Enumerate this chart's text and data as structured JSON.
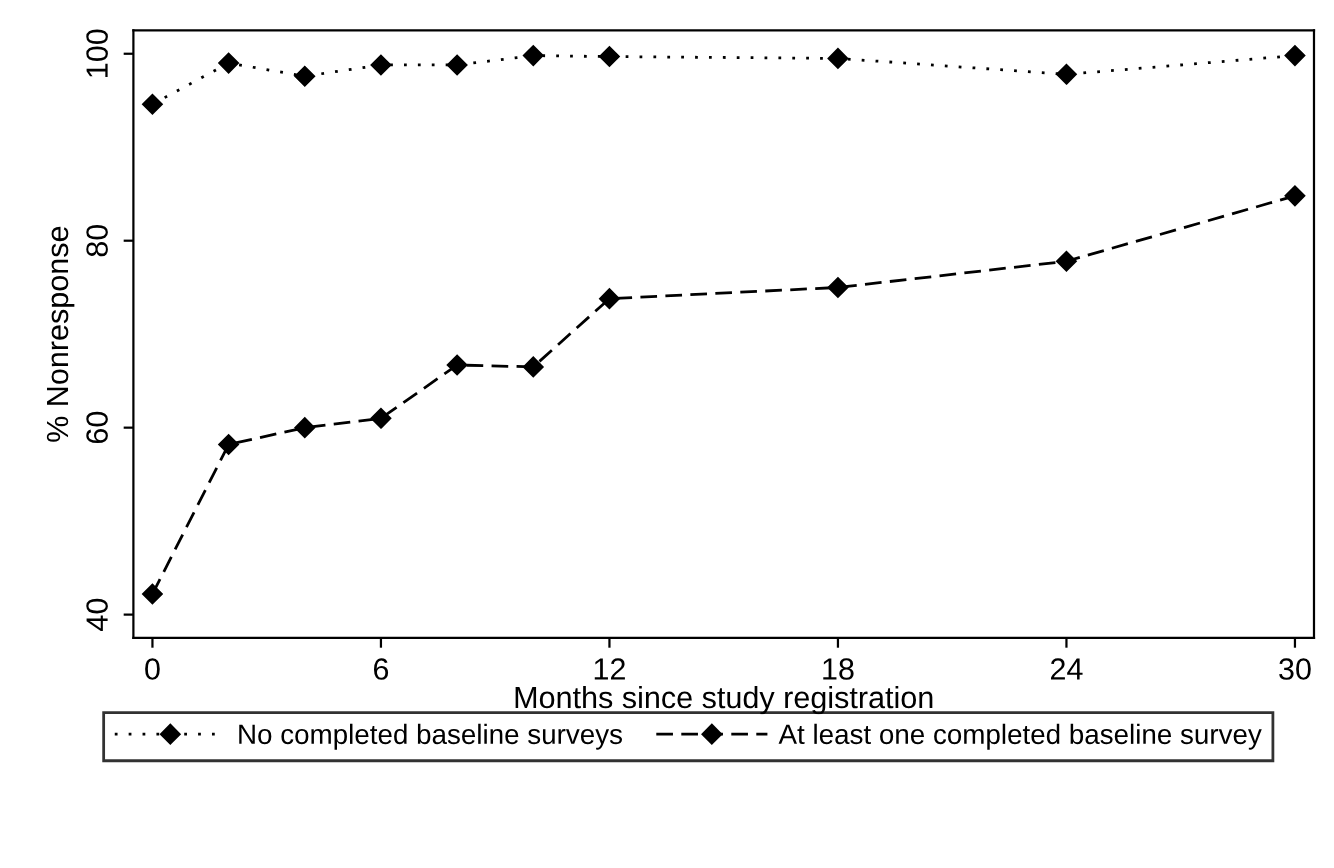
{
  "chart_data": {
    "type": "line",
    "xlabel": "Months since study registration",
    "ylabel": "% Nonresponse",
    "x": [
      0,
      2,
      4,
      6,
      8,
      10,
      12,
      18,
      24,
      30
    ],
    "series": [
      {
        "name": "No completed baseline surveys",
        "color": "#000000",
        "line_style": "dotted",
        "values": [
          94.6,
          99.0,
          97.6,
          98.8,
          98.8,
          99.8,
          99.7,
          99.5,
          97.8,
          99.8
        ]
      },
      {
        "name": "At least one completed baseline survey",
        "color": "#000000",
        "line_style": "dashed",
        "values": [
          42.2,
          58.2,
          60.0,
          61.0,
          66.7,
          66.5,
          73.8,
          75.0,
          77.8,
          84.8
        ]
      }
    ],
    "xlim": [
      -0.5,
      30.5
    ],
    "ylim": [
      37.5,
      102.5
    ],
    "xticks": [
      0,
      6,
      12,
      18,
      24,
      30
    ],
    "yticks": [
      40,
      60,
      80,
      100
    ],
    "marker": "diamond",
    "grid": false,
    "legend": "bottom"
  }
}
